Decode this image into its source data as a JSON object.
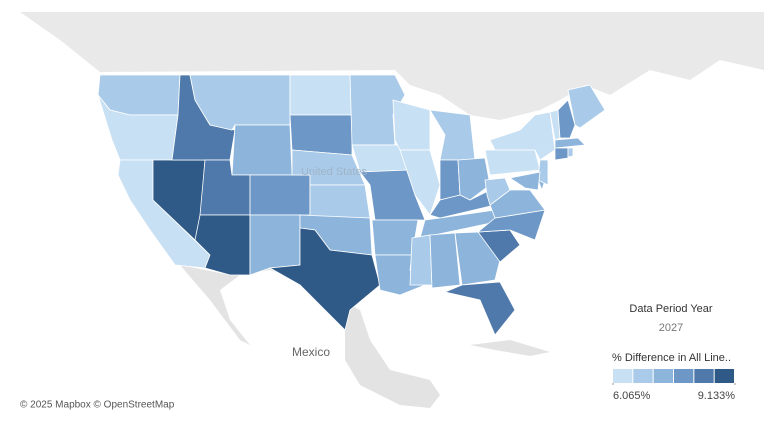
{
  "map": {
    "labels": {
      "country_us": "United States",
      "country_mx": "Mexico",
      "attribution": "© 2025 Mapbox © OpenStreetMap"
    },
    "filter": {
      "title": "Data Period Year",
      "value": "2027"
    },
    "legend": {
      "title": "% Difference in All Line..",
      "colors": [
        "#c8e0f4",
        "#a9cbe9",
        "#8db5dc",
        "#6c97c6",
        "#4f79aa",
        "#2f5a88"
      ],
      "ticks": [
        {
          "value": 6.065,
          "label": "6.065%"
        },
        {
          "value": 9.133,
          "label": "9.133%"
        }
      ]
    },
    "states": {
      "values": [
        6.83,
        6.32,
        6.32,
        8.88,
        8.37,
        6.83,
        7.34,
        8.37,
        8.88,
        7.86,
        7.34,
        6.32,
        7.86,
        6.83,
        6.83,
        7.34,
        8.88,
        6.83,
        6.32,
        7.86,
        7.34,
        7.34,
        6.32,
        6.32,
        6.83,
        7.86,
        7.34,
        7.86,
        7.34,
        6.83,
        7.34,
        7.34,
        8.37,
        8.37,
        7.86,
        7.34,
        6.83,
        6.32,
        6.32,
        6.83,
        6.32,
        7.86,
        7.34,
        7.86,
        7.34,
        6.83,
        7.34,
        6.83
      ]
    }
  }
}
